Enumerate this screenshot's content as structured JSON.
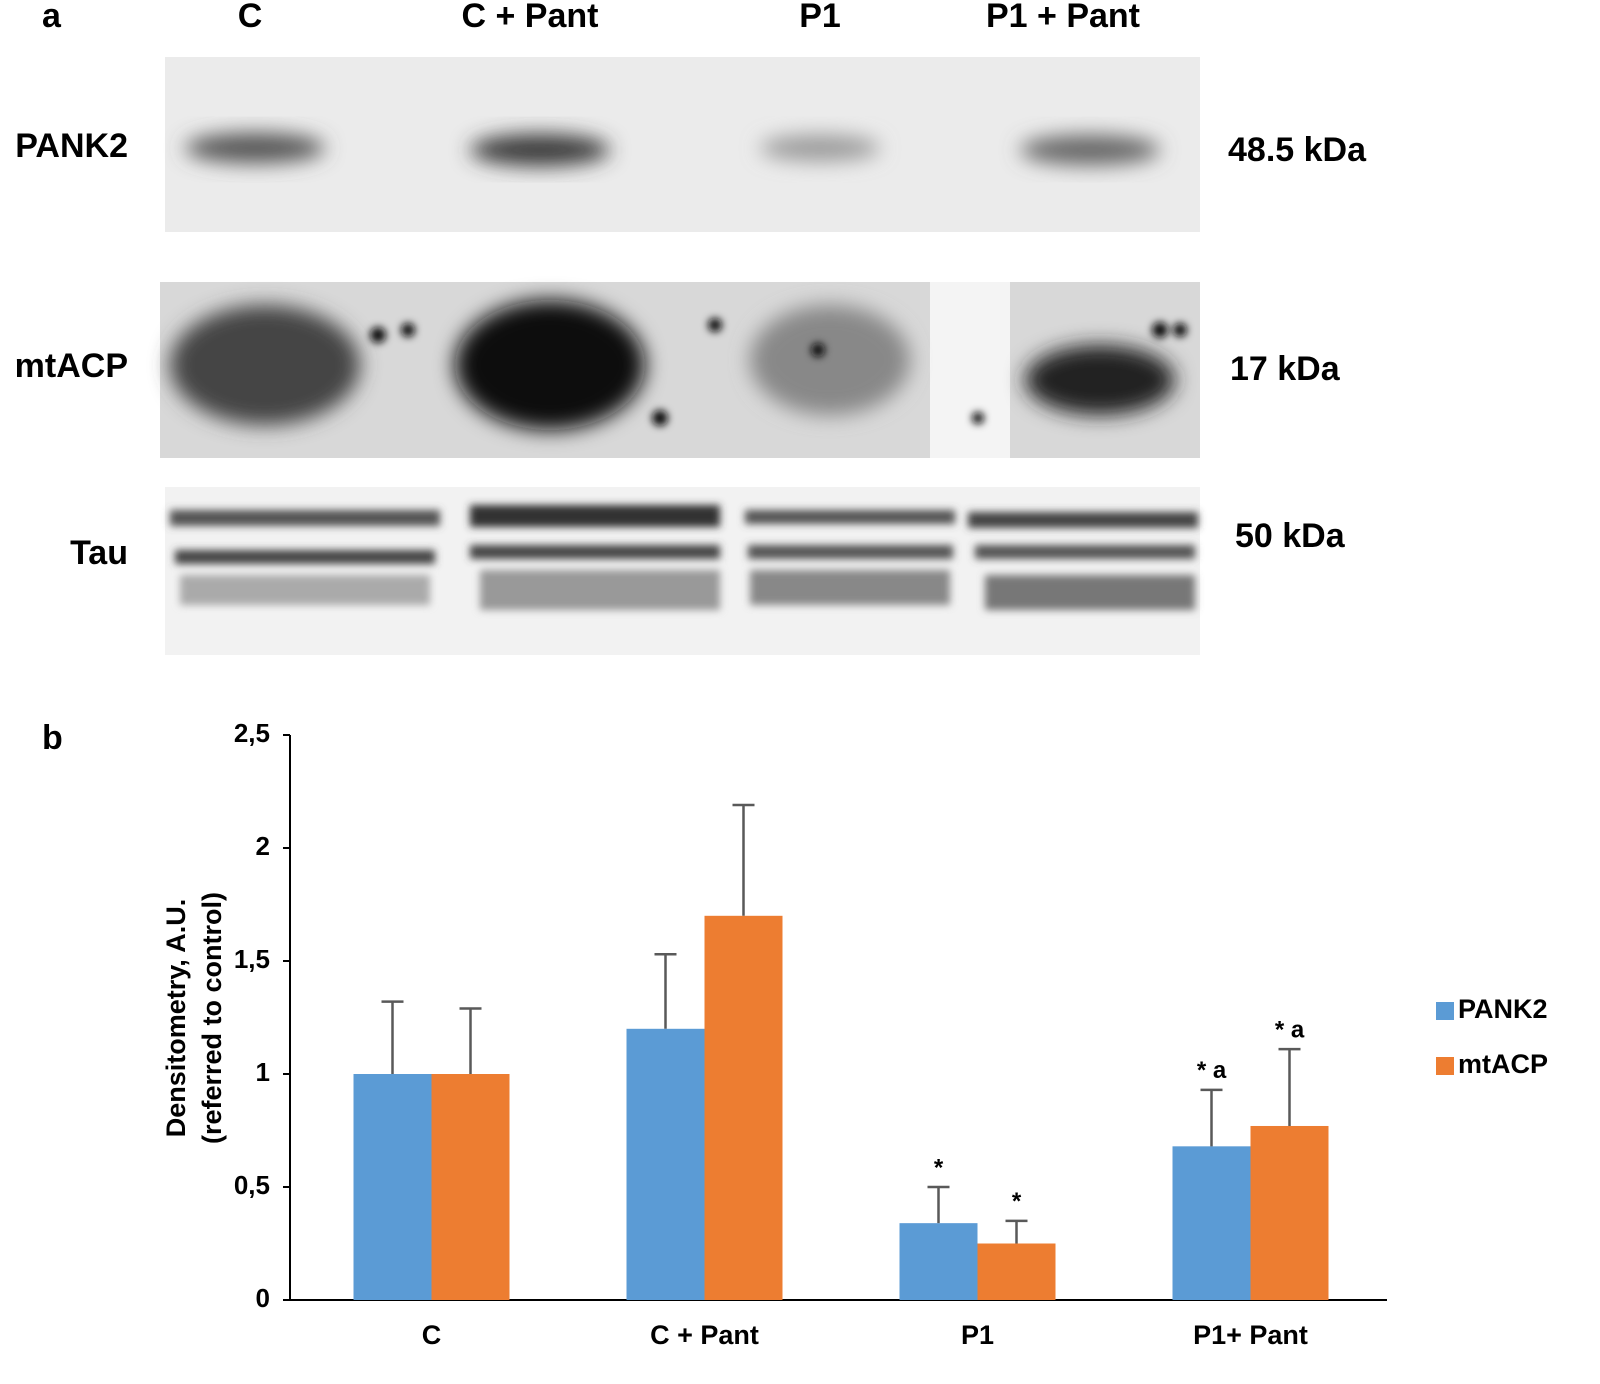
{
  "panel_a": {
    "label": "a",
    "lanes": [
      "C",
      "C + Pant",
      "P1",
      "P1 + Pant"
    ],
    "proteins": [
      {
        "name": "PANK2",
        "size": "48.5 kDa"
      },
      {
        "name": "mtACP",
        "size": "17 kDa"
      },
      {
        "name": "Tau",
        "size": "50 kDa"
      }
    ]
  },
  "chart_data": {
    "type": "bar",
    "panel_label": "b",
    "y_label": [
      "Densitometry, A.U.",
      "(referred to control)"
    ],
    "categories": [
      "C",
      "C + Pant",
      "P1",
      "P1+ Pant"
    ],
    "series": [
      {
        "name": "PANK2",
        "color": "#5b9bd5",
        "values": [
          1.0,
          1.2,
          0.34,
          0.68
        ],
        "errors": [
          0.32,
          0.33,
          0.16,
          0.25
        ],
        "significance": [
          null,
          null,
          "*",
          "* a"
        ]
      },
      {
        "name": "mtACP",
        "color": "#ed7d31",
        "values": [
          1.0,
          1.7,
          0.25,
          0.77
        ],
        "errors": [
          0.29,
          0.49,
          0.1,
          0.34
        ],
        "significance": [
          null,
          null,
          "*",
          "* a"
        ]
      }
    ],
    "ylim": [
      0,
      2.5
    ],
    "yticks": [
      0,
      {
        "value": 0.5,
        "label": "0,5"
      },
      1,
      {
        "value": 1.5,
        "label": "1,5"
      },
      2,
      {
        "value": 2.5,
        "label": "2,5"
      }
    ],
    "legend": "right",
    "grid": false
  }
}
